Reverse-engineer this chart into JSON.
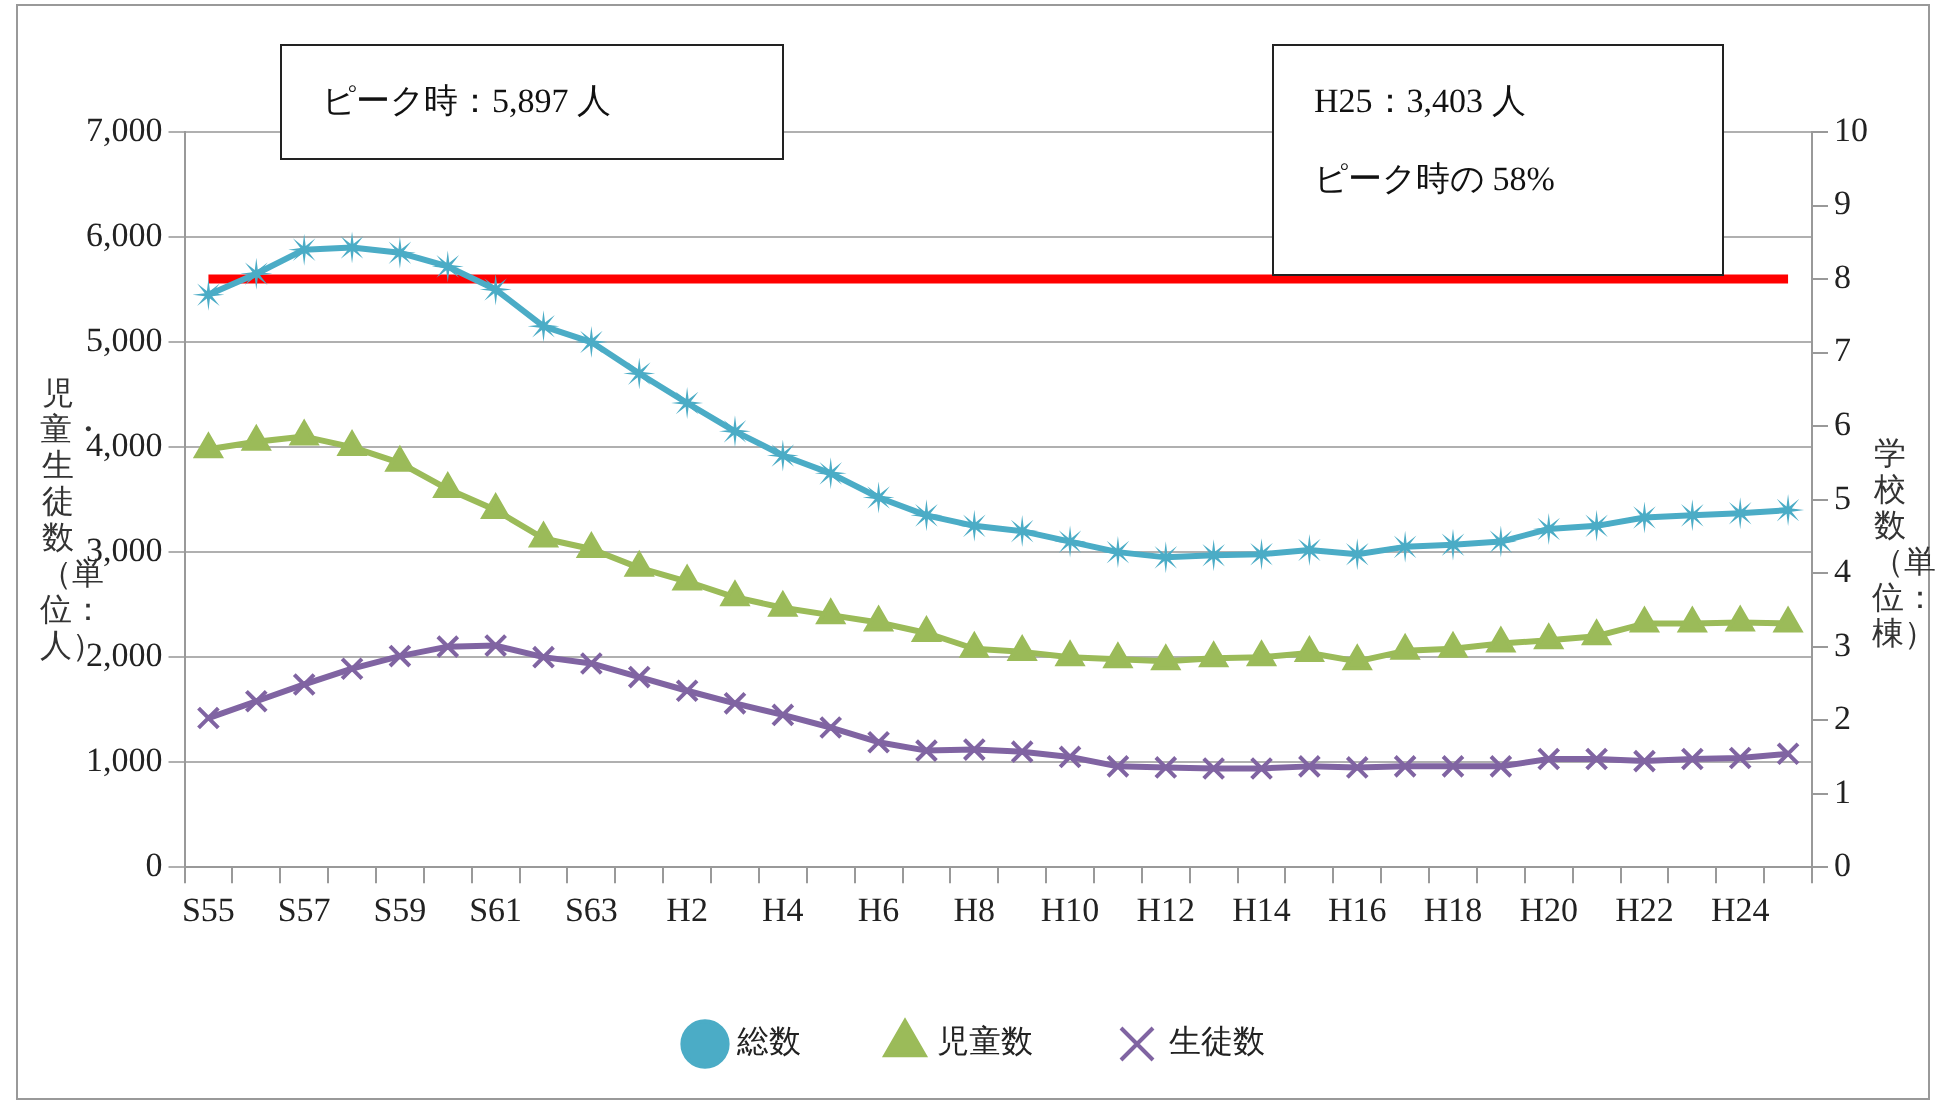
{
  "chart_data": {
    "type": "line",
    "xlabel": null,
    "ylabel": "児童・生徒数（単位：人）",
    "y2label": "学校数（単位：棟）",
    "categories": [
      "S55",
      null,
      "S57",
      null,
      "S59",
      null,
      "S61",
      null,
      "S63",
      null,
      "H2",
      null,
      "H4",
      null,
      "H6",
      null,
      "H8",
      null,
      "H10",
      null,
      "H12",
      null,
      "H14",
      null,
      "H16",
      null,
      "H18",
      null,
      "H20",
      null,
      "H22",
      null,
      "H24",
      null
    ],
    "series": [
      {
        "name": "総数",
        "color": "#4bacc6",
        "marker": "star",
        "values": [
          5450,
          5650,
          5880,
          5900,
          5850,
          5720,
          5500,
          5150,
          5000,
          4700,
          4420,
          4150,
          3920,
          3750,
          3520,
          3350,
          3250,
          3200,
          3100,
          3000,
          2950,
          2970,
          2980,
          3020,
          2980,
          3050,
          3070,
          3100,
          3220,
          3250,
          3330,
          3350,
          3370,
          3400
        ]
      },
      {
        "name": "児童数",
        "color": "#9bbb59",
        "marker": "triangle",
        "values": [
          3980,
          4050,
          4100,
          4000,
          3850,
          3600,
          3400,
          3130,
          3030,
          2850,
          2720,
          2570,
          2470,
          2400,
          2330,
          2230,
          2080,
          2050,
          2000,
          1980,
          1960,
          1990,
          2000,
          2040,
          1960,
          2060,
          2080,
          2130,
          2160,
          2200,
          2320,
          2320,
          2330,
          2320
        ]
      },
      {
        "name": "生徒数",
        "color": "#8064a2",
        "marker": "cross",
        "values": [
          1420,
          1580,
          1740,
          1890,
          2010,
          2100,
          2110,
          2000,
          1940,
          1810,
          1680,
          1560,
          1450,
          1330,
          1190,
          1110,
          1120,
          1100,
          1050,
          960,
          950,
          940,
          940,
          960,
          950,
          960,
          960,
          960,
          1030,
          1030,
          1010,
          1030,
          1040,
          1080
        ]
      },
      {
        "color": "#ff0000",
        "marker": "none",
        "axis": "y2",
        "values": [
          8,
          8,
          8,
          8,
          8,
          8,
          8,
          8,
          8,
          8,
          8,
          8,
          8,
          8,
          8,
          8,
          8,
          8,
          8,
          8,
          8,
          8,
          8,
          8,
          8,
          8,
          8,
          8,
          8,
          8,
          8,
          8,
          8,
          8
        ]
      }
    ],
    "ylim": [
      0,
      7000
    ],
    "yticks": [
      0,
      {
        "value": 1000,
        "label": "1,000"
      },
      {
        "value": 2000,
        "label": "2,000"
      },
      {
        "value": 3000,
        "label": "3,000"
      },
      {
        "value": 4000,
        "label": "4,000"
      },
      {
        "value": 5000,
        "label": "5,000"
      },
      {
        "value": 6000,
        "label": "6,000"
      },
      {
        "value": 7000,
        "label": "7,000"
      }
    ],
    "y2lim": [
      0,
      10
    ],
    "y2ticks": [
      0,
      1,
      2,
      3,
      4,
      5,
      6,
      7,
      8,
      9,
      10
    ],
    "grid": "y",
    "legend": "bottom",
    "annotations": [
      "ピーク時：5,897 人",
      "H25：3,403 人",
      "ピーク時の 58%"
    ]
  }
}
